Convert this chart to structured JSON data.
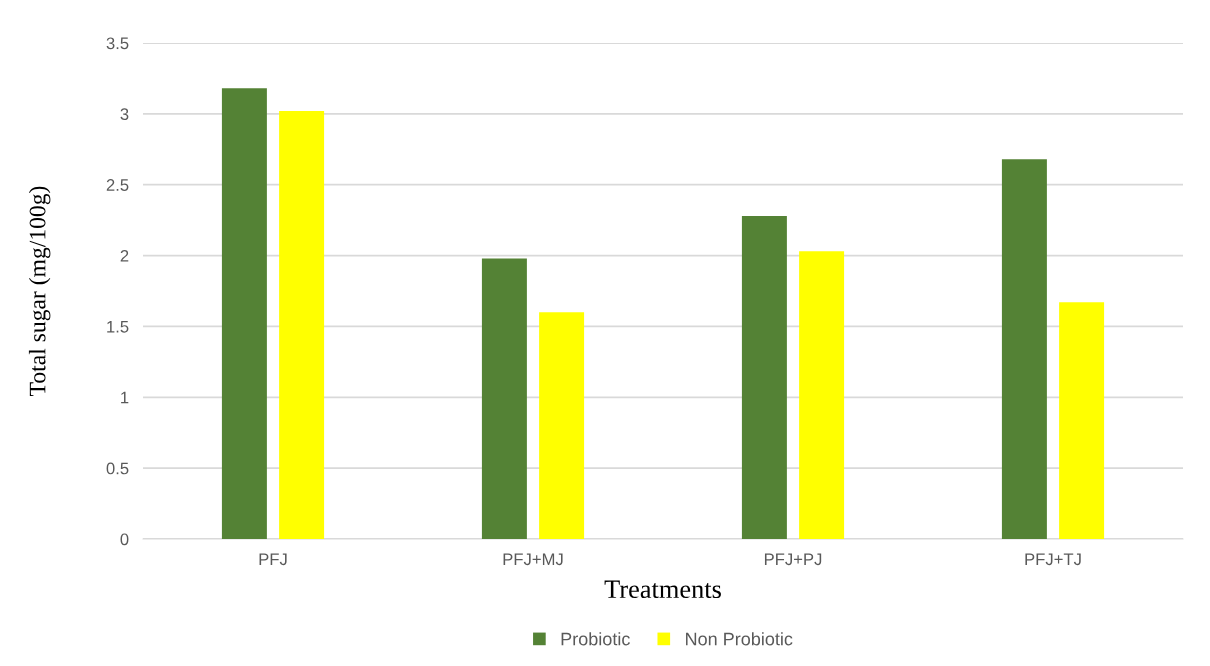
{
  "chart_data": {
    "type": "bar",
    "xlabel": "Treatments",
    "ylabel": "Total sugar (mg/100g)",
    "categories": [
      "PFJ",
      "PFJ+MJ",
      "PFJ+PJ",
      "PFJ+TJ"
    ],
    "series": [
      {
        "name": "Probiotic",
        "color": "#548235",
        "values": [
          3.18,
          1.98,
          2.28,
          2.68
        ]
      },
      {
        "name": "Non Probiotic",
        "color": "#ffff00",
        "values": [
          3.02,
          1.6,
          2.03,
          1.67
        ]
      }
    ],
    "ylim": [
      0,
      3.5
    ],
    "yticks": [
      0,
      0.5,
      1,
      1.5,
      2,
      2.5,
      3,
      3.5
    ],
    "grid": "y",
    "legend": "bottom"
  }
}
